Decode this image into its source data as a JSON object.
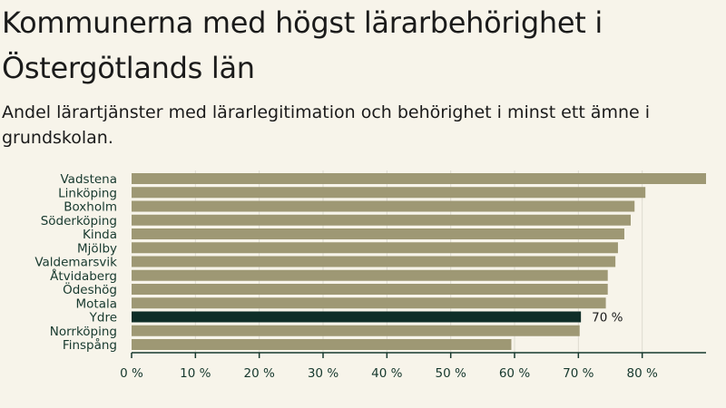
{
  "header": {
    "title": "Kommunerna med högst lärarbehörighet i Östergötlands län",
    "subtitle": "Andel lärartjänster med lärarlegitimation och behörighet i minst ett ämne i grundskolan."
  },
  "colors": {
    "background": "#f7f4ea",
    "bar": "#9e9874",
    "highlight": "#0f2e28",
    "grid": "#dedbd0",
    "axis": "#17392e"
  },
  "chart_data": {
    "type": "bar",
    "orientation": "horizontal",
    "categories": [
      "Vadstena",
      "Linköping",
      "Boxholm",
      "Söderköping",
      "Kinda",
      "Mjölby",
      "Valdemarsvik",
      "Åtvidaberg",
      "Ödeshög",
      "Motala",
      "Ydre",
      "Norrköping",
      "Finspång"
    ],
    "values": [
      90,
      80.5,
      78.8,
      78.2,
      77.2,
      76.2,
      75.8,
      74.6,
      74.6,
      74.3,
      70.4,
      70.2,
      59.5
    ],
    "highlight_category": "Ydre",
    "data_labels": [
      {
        "category": "Ydre",
        "text": "70 %"
      }
    ],
    "xticks": [
      "0 %",
      "10 %",
      "20 %",
      "30 %",
      "40 %",
      "50 %",
      "60 %",
      "70 %",
      "80 %"
    ],
    "xtick_values": [
      0,
      10,
      20,
      30,
      40,
      50,
      60,
      70,
      80
    ],
    "xlim": [
      0,
      90
    ],
    "grid": true
  }
}
